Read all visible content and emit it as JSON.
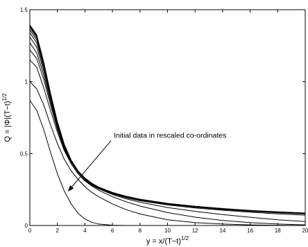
{
  "chart_data": {
    "type": "line",
    "title": "",
    "xlabel": "y = x/(T−t)",
    "xlabel_sup": "1/2",
    "ylabel": "Q = |Φ|(T−t)",
    "ylabel_sup": "1/2",
    "xlim": [
      0,
      20
    ],
    "ylim": [
      0,
      1.5
    ],
    "xticks": [
      "0",
      "2",
      "4",
      "6",
      "8",
      "10",
      "12",
      "14",
      "16",
      "18",
      "20"
    ],
    "yticks": [
      "0",
      "0.5",
      "1",
      "1.5"
    ],
    "grid": false,
    "legend": "none",
    "annotation": {
      "text": "Initial data in rescaled co-ordinates",
      "text_at": [
        6.1,
        0.61
      ],
      "arrow_from": [
        5.9,
        0.59
      ],
      "arrow_to": [
        2.8,
        0.24
      ]
    },
    "line_color": "#000000",
    "x": [
      0,
      0.5,
      1,
      1.5,
      2,
      2.5,
      3,
      3.5,
      4,
      4.5,
      5,
      6,
      7,
      8,
      10,
      12,
      14,
      16,
      18,
      20
    ],
    "series": [
      {
        "values": [
          0.87,
          0.8,
          0.67,
          0.51,
          0.36,
          0.24,
          0.15,
          0.085,
          0.045,
          0.022,
          0.01,
          0.002,
          0,
          0,
          0,
          0,
          0,
          0,
          0,
          0
        ]
      },
      {
        "values": [
          1.0,
          0.95,
          0.84,
          0.7,
          0.57,
          0.46,
          0.38,
          0.32,
          0.27,
          0.23,
          0.2,
          0.15,
          0.11,
          0.08,
          0.04,
          0.02,
          0.01,
          0.004,
          0.001,
          0
        ]
      },
      {
        "values": [
          1.15,
          1.1,
          0.96,
          0.8,
          0.65,
          0.52,
          0.43,
          0.36,
          0.31,
          0.275,
          0.245,
          0.2,
          0.165,
          0.135,
          0.09,
          0.058,
          0.035,
          0.02,
          0.01,
          0.004
        ]
      },
      {
        "values": [
          1.22,
          1.16,
          1.02,
          0.84,
          0.67,
          0.53,
          0.43,
          0.36,
          0.315,
          0.28,
          0.255,
          0.215,
          0.185,
          0.162,
          0.125,
          0.098,
          0.076,
          0.057,
          0.04,
          0.028
        ]
      },
      {
        "values": [
          1.27,
          1.2,
          1.05,
          0.86,
          0.68,
          0.54,
          0.44,
          0.37,
          0.32,
          0.283,
          0.258,
          0.22,
          0.192,
          0.172,
          0.143,
          0.122,
          0.106,
          0.092,
          0.081,
          0.072
        ]
      },
      {
        "values": [
          1.31,
          1.24,
          1.08,
          0.88,
          0.695,
          0.55,
          0.445,
          0.372,
          0.322,
          0.286,
          0.26,
          0.223,
          0.196,
          0.176,
          0.147,
          0.127,
          0.111,
          0.098,
          0.088,
          0.08
        ]
      },
      {
        "values": [
          1.34,
          1.27,
          1.1,
          0.895,
          0.705,
          0.555,
          0.448,
          0.374,
          0.324,
          0.288,
          0.262,
          0.225,
          0.198,
          0.178,
          0.149,
          0.129,
          0.113,
          0.1,
          0.09,
          0.082
        ]
      },
      {
        "values": [
          1.36,
          1.29,
          1.115,
          0.905,
          0.71,
          0.558,
          0.45,
          0.376,
          0.326,
          0.29,
          0.263,
          0.226,
          0.199,
          0.179,
          0.15,
          0.13,
          0.114,
          0.101,
          0.091,
          0.083
        ]
      },
      {
        "values": [
          1.375,
          1.305,
          1.125,
          0.91,
          0.715,
          0.56,
          0.452,
          0.377,
          0.327,
          0.291,
          0.264,
          0.227,
          0.2,
          0.18,
          0.151,
          0.131,
          0.115,
          0.102,
          0.092,
          0.084
        ]
      },
      {
        "values": [
          1.385,
          1.315,
          1.132,
          0.915,
          0.718,
          0.562,
          0.453,
          0.378,
          0.328,
          0.292,
          0.265,
          0.228,
          0.201,
          0.181,
          0.152,
          0.132,
          0.116,
          0.103,
          0.093,
          0.085
        ]
      },
      {
        "values": [
          1.39,
          1.32,
          1.136,
          0.918,
          0.72,
          0.563,
          0.454,
          0.379,
          0.329,
          0.293,
          0.266,
          0.229,
          0.202,
          0.182,
          0.153,
          0.133,
          0.117,
          0.104,
          0.094,
          0.086
        ]
      },
      {
        "values": [
          1.395,
          1.325,
          1.14,
          0.92,
          0.722,
          0.564,
          0.455,
          0.38,
          0.33,
          0.294,
          0.267,
          0.23,
          0.203,
          0.183,
          0.154,
          0.134,
          0.118,
          0.105,
          0.095,
          0.087
        ]
      }
    ]
  }
}
